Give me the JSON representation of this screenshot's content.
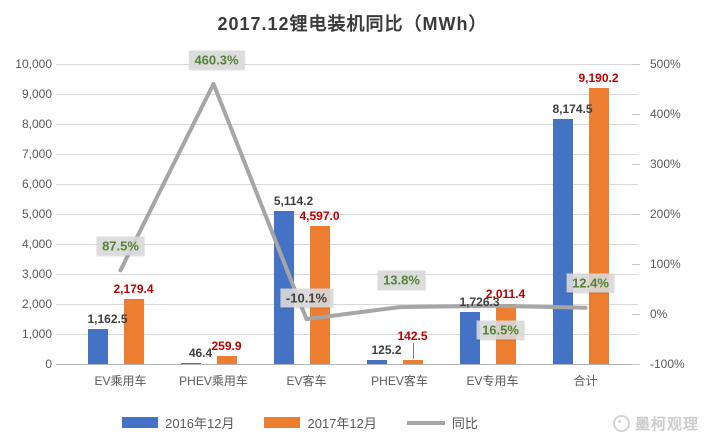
{
  "title": "2017.12锂电装机同比（MWh）",
  "watermark": {
    "text": "墨柯观理"
  },
  "chart_data": {
    "type": "bar",
    "subtype": "bar+line combo, dual axis",
    "title": "2017.12锂电装机同比（MWh）",
    "categories": [
      "EV乘用车",
      "PHEV乘用车",
      "EV客车",
      "PHEV客车",
      "EV专用车",
      "合计"
    ],
    "series": [
      {
        "name": "2016年12月",
        "kind": "bar",
        "axis": "left",
        "color": "#4472C4",
        "label_color": "#404040",
        "values": [
          1162.5,
          46.4,
          5114.2,
          125.2,
          1726.3,
          8174.5
        ],
        "labels": [
          "1,162.5",
          "46.4",
          "5,114.2",
          "125.2",
          "1,726.3",
          "8,174.5"
        ]
      },
      {
        "name": "2017年12月",
        "kind": "bar",
        "axis": "left",
        "color": "#ED7D31",
        "label_color": "#C00000",
        "values": [
          2179.4,
          259.9,
          4597.0,
          142.5,
          2011.4,
          9190.2
        ],
        "labels": [
          "2,179.4",
          "259.9",
          "4,597.0",
          "142.5",
          "2,011.4",
          "9,190.2"
        ]
      },
      {
        "name": "同比",
        "kind": "line",
        "axis": "right",
        "color": "#A6A6A6",
        "label_bg": "#D9D9D9",
        "label_colors": [
          "#548235",
          "#548235",
          "#3f3f3f",
          "#548235",
          "#548235",
          "#548235"
        ],
        "values": [
          87.5,
          460.3,
          -10.1,
          13.8,
          16.5,
          12.4
        ],
        "labels": [
          "87.5%",
          "460.3%",
          "-10.1%",
          "13.8%",
          "16.5%",
          "12.4%"
        ]
      }
    ],
    "left_axis": {
      "min": 0,
      "max": 10000,
      "step": 1000,
      "labels": [
        "0",
        "1,000",
        "2,000",
        "3,000",
        "4,000",
        "5,000",
        "6,000",
        "7,000",
        "8,000",
        "9,000",
        "10,000"
      ]
    },
    "right_axis": {
      "min": -100,
      "max": 500,
      "step": 100,
      "labels": [
        "-100%",
        "0%",
        "100%",
        "200%",
        "300%",
        "400%",
        "500%"
      ]
    },
    "grid": true,
    "legend_position": "bottom"
  }
}
